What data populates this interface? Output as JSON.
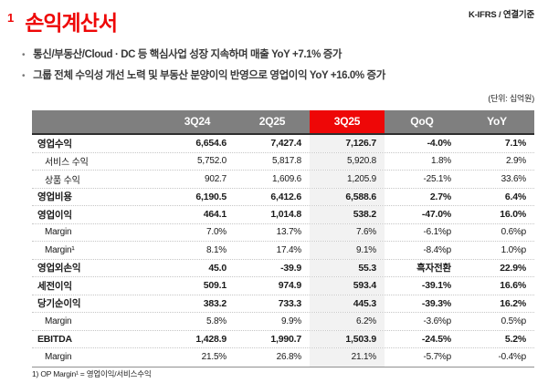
{
  "meta": {
    "standard": "K-IFRS / 연결기준",
    "unit": "(단위: 십억원)",
    "footnote": "1) OP Margin¹ = 영업이익/서비스수익"
  },
  "header": {
    "index": "1",
    "title": "손익계산서"
  },
  "bullets": [
    "통신/부동산/Cloud · DC 등 핵심사업 성장 지속하며 매출 YoY +7.1% 증가",
    "그룹 전체 수익성 개선 노력 및 부동산 분양이익 반영으로 영업이익 YoY +16.0% 증가"
  ],
  "colors": {
    "accent_red": "#ee0707",
    "header_gray": "#7f7f7f",
    "highlight_column_bg": "#f2f2f2"
  },
  "table": {
    "columns": [
      "",
      "3Q24",
      "2Q25",
      "3Q25",
      "QoQ",
      "YoY"
    ],
    "highlight_column": "3Q25",
    "rows": [
      {
        "label": "영업수익",
        "bold": true,
        "indent": false,
        "values": [
          "6,654.6",
          "7,427.4",
          "7,126.7",
          "-4.0%",
          "7.1%"
        ]
      },
      {
        "label": "서비스 수익",
        "bold": false,
        "indent": true,
        "values": [
          "5,752.0",
          "5,817.8",
          "5,920.8",
          "1.8%",
          "2.9%"
        ]
      },
      {
        "label": "상품 수익",
        "bold": false,
        "indent": true,
        "values": [
          "902.7",
          "1,609.6",
          "1,205.9",
          "-25.1%",
          "33.6%"
        ]
      },
      {
        "label": "영업비용",
        "bold": true,
        "indent": false,
        "values": [
          "6,190.5",
          "6,412.6",
          "6,588.6",
          "2.7%",
          "6.4%"
        ]
      },
      {
        "label": "영업이익",
        "bold": true,
        "indent": false,
        "values": [
          "464.1",
          "1,014.8",
          "538.2",
          "-47.0%",
          "16.0%"
        ]
      },
      {
        "label": "Margin",
        "bold": false,
        "indent": true,
        "values": [
          "7.0%",
          "13.7%",
          "7.6%",
          "-6.1%p",
          "0.6%p"
        ]
      },
      {
        "label": "Margin¹",
        "bold": false,
        "indent": true,
        "values": [
          "8.1%",
          "17.4%",
          "9.1%",
          "-8.4%p",
          "1.0%p"
        ]
      },
      {
        "label": "영업외손익",
        "bold": true,
        "indent": false,
        "values": [
          "45.0",
          "-39.9",
          "55.3",
          "흑자전환",
          "22.9%"
        ]
      },
      {
        "label": "세전이익",
        "bold": true,
        "indent": false,
        "values": [
          "509.1",
          "974.9",
          "593.4",
          "-39.1%",
          "16.6%"
        ]
      },
      {
        "label": "당기순이익",
        "bold": true,
        "indent": false,
        "values": [
          "383.2",
          "733.3",
          "445.3",
          "-39.3%",
          "16.2%"
        ]
      },
      {
        "label": "Margin",
        "bold": false,
        "indent": true,
        "values": [
          "5.8%",
          "9.9%",
          "6.2%",
          "-3.6%p",
          "0.5%p"
        ]
      },
      {
        "label": "EBITDA",
        "bold": true,
        "indent": false,
        "values": [
          "1,428.9",
          "1,990.7",
          "1,503.9",
          "-24.5%",
          "5.2%"
        ]
      },
      {
        "label": "Margin",
        "bold": false,
        "indent": true,
        "values": [
          "21.5%",
          "26.8%",
          "21.1%",
          "-5.7%p",
          "-0.4%p"
        ]
      }
    ]
  }
}
